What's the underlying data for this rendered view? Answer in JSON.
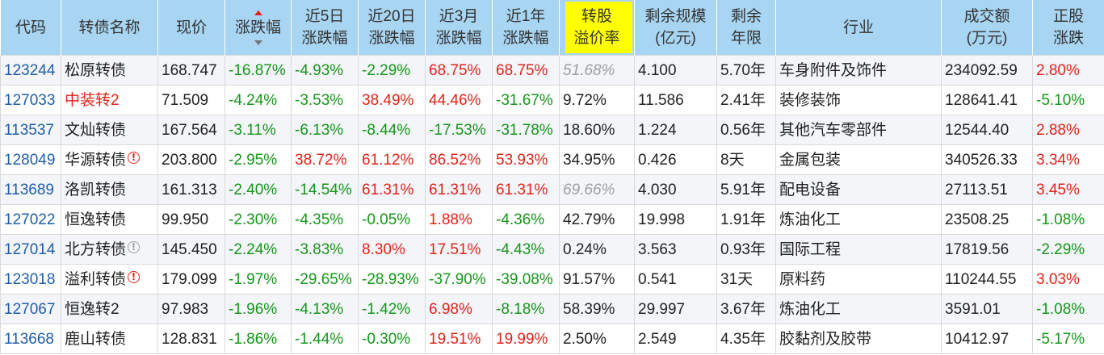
{
  "colors": {
    "header_bg": "#a8d5f2",
    "header_highlight": "#ffff00",
    "up": "#e2231a",
    "down": "#17961b",
    "code": "#1f5eab",
    "muted": "#9e9e9e",
    "grid": "#dadada",
    "stripe": "#f3f5f9"
  },
  "table": {
    "columns": [
      {
        "label": [
          "代码"
        ]
      },
      {
        "label": [
          "转债名称"
        ]
      },
      {
        "label": [
          "现价"
        ]
      },
      {
        "label": [
          "涨跌幅"
        ],
        "signed": true,
        "sortable": true,
        "sort_asc_active": true
      },
      {
        "label": [
          "近5日",
          "涨跌幅"
        ],
        "signed": true
      },
      {
        "label": [
          "近20日",
          "涨跌幅"
        ],
        "signed": true
      },
      {
        "label": [
          "近3月",
          "涨跌幅"
        ],
        "signed": true
      },
      {
        "label": [
          "近1年",
          "涨跌幅"
        ],
        "signed": true
      },
      {
        "label": [
          "转股",
          "溢价率"
        ],
        "highlight": true
      },
      {
        "label": [
          "剩余规模",
          "(亿元)"
        ]
      },
      {
        "label": [
          "剩余",
          "年限"
        ]
      },
      {
        "label": [
          "行业"
        ]
      },
      {
        "label": [
          "成交额",
          "(万元)"
        ]
      },
      {
        "label": [
          "正股",
          "涨跌"
        ],
        "signed": true
      }
    ],
    "rows": [
      {
        "code": "123244",
        "name": "松原转债",
        "price": "168.747",
        "chg": "-16.87%",
        "chg_5d": "-4.93%",
        "chg_20d": "-2.29%",
        "chg_3m": "68.75%",
        "chg_1y": "68.75%",
        "premium": "51.68%",
        "premium_muted": true,
        "remaining_size": "4.100",
        "remaining_term": "5.70年",
        "industry": "车身附件及饰件",
        "turnover": "234092.59",
        "stock_chg": "2.80%"
      },
      {
        "code": "127033",
        "name": "中装转2",
        "name_color": "#e2231a",
        "price": "71.509",
        "chg": "-4.24%",
        "chg_5d": "-3.53%",
        "chg_20d": "38.49%",
        "chg_3m": "44.46%",
        "chg_1y": "-31.67%",
        "premium": "9.72%",
        "remaining_size": "11.586",
        "remaining_term": "2.41年",
        "industry": "装修装饰",
        "turnover": "128641.41",
        "stock_chg": "-5.10%"
      },
      {
        "code": "113537",
        "name": "文灿转债",
        "price": "167.564",
        "chg": "-3.11%",
        "chg_5d": "-6.13%",
        "chg_20d": "-8.44%",
        "chg_3m": "-17.53%",
        "chg_1y": "-31.78%",
        "premium": "18.60%",
        "remaining_size": "1.224",
        "remaining_term": "0.56年",
        "industry": "其他汽车零部件",
        "turnover": "12544.40",
        "stock_chg": "2.88%"
      },
      {
        "code": "128049",
        "name": "华源转债",
        "warn_icon": {
          "name": "exclamation-circle-icon",
          "color": "#e2231a"
        },
        "price": "203.800",
        "chg": "-2.95%",
        "chg_5d": "38.72%",
        "chg_20d": "61.12%",
        "chg_3m": "86.52%",
        "chg_1y": "53.93%",
        "premium": "34.95%",
        "remaining_size": "0.426",
        "remaining_term": "8天",
        "industry": "金属包装",
        "turnover": "340526.33",
        "stock_chg": "3.34%"
      },
      {
        "code": "113689",
        "name": "洛凯转债",
        "price": "161.313",
        "chg": "-2.40%",
        "chg_5d": "-14.54%",
        "chg_20d": "61.31%",
        "chg_3m": "61.31%",
        "chg_1y": "61.31%",
        "premium": "69.66%",
        "premium_muted": true,
        "remaining_size": "4.030",
        "remaining_term": "5.91年",
        "industry": "配电设备",
        "turnover": "27113.51",
        "stock_chg": "3.45%"
      },
      {
        "code": "127022",
        "name": "恒逸转债",
        "price": "99.950",
        "chg": "-2.30%",
        "chg_5d": "-4.35%",
        "chg_20d": "-0.05%",
        "chg_3m": "1.88%",
        "chg_1y": "-4.36%",
        "premium": "42.79%",
        "remaining_size": "19.998",
        "remaining_term": "1.91年",
        "industry": "炼油化工",
        "turnover": "23508.25",
        "stock_chg": "-1.08%"
      },
      {
        "code": "127014",
        "name": "北方转债",
        "warn_icon": {
          "name": "exclamation-circle-icon",
          "color": "#a0a0a0"
        },
        "price": "145.450",
        "chg": "-2.24%",
        "chg_5d": "-3.83%",
        "chg_20d": "8.30%",
        "chg_3m": "17.51%",
        "chg_1y": "-4.43%",
        "premium": "0.24%",
        "remaining_size": "3.563",
        "remaining_term": "0.93年",
        "industry": "国际工程",
        "turnover": "17819.56",
        "stock_chg": "-2.29%"
      },
      {
        "code": "123018",
        "name": "溢利转债",
        "warn_icon": {
          "name": "exclamation-circle-icon",
          "color": "#e2231a"
        },
        "price": "179.099",
        "chg": "-1.97%",
        "chg_5d": "-29.65%",
        "chg_20d": "-28.93%",
        "chg_3m": "-37.90%",
        "chg_1y": "-39.08%",
        "premium": "91.57%",
        "remaining_size": "0.541",
        "remaining_term": "31天",
        "industry": "原料药",
        "turnover": "110244.55",
        "stock_chg": "3.03%"
      },
      {
        "code": "127067",
        "name": "恒逸转2",
        "price": "97.983",
        "chg": "-1.96%",
        "chg_5d": "-4.13%",
        "chg_20d": "-1.42%",
        "chg_3m": "6.98%",
        "chg_1y": "-8.18%",
        "premium": "58.39%",
        "remaining_size": "29.997",
        "remaining_term": "3.67年",
        "industry": "炼油化工",
        "turnover": "3591.01",
        "stock_chg": "-1.08%"
      },
      {
        "code": "113668",
        "name": "鹿山转债",
        "price": "128.831",
        "chg": "-1.86%",
        "chg_5d": "-1.44%",
        "chg_20d": "-0.30%",
        "chg_3m": "19.51%",
        "chg_1y": "19.99%",
        "premium": "2.50%",
        "remaining_size": "2.549",
        "remaining_term": "4.35年",
        "industry": "胶黏剂及胶带",
        "turnover": "10412.97",
        "stock_chg": "-5.17%"
      }
    ]
  }
}
